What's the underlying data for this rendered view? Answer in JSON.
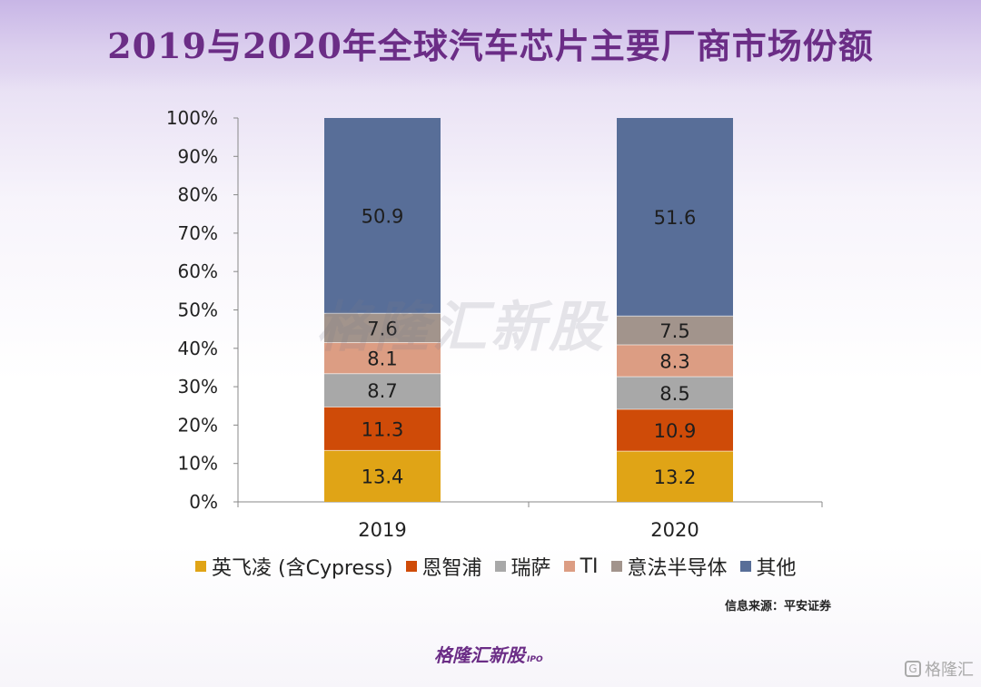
{
  "title": "2019与2020年全球汽车芯片主要厂商市场份额",
  "source": "信息来源：平安证券",
  "logo": {
    "text": "格隆汇新股",
    "sub": "IPO"
  },
  "watermark": "格隆汇新股",
  "corner_logo": {
    "icon": "G",
    "text": "格隆汇"
  },
  "colors": {
    "title": "#6b2d86",
    "infineon": "#e0a416",
    "nxp": "#cf4b08",
    "renesas": "#a8a8a8",
    "ti": "#dc9d83",
    "st": "#a2948c",
    "others": "#586e98"
  },
  "chart_data": {
    "type": "bar",
    "stacked": true,
    "categories": [
      "2019",
      "2020"
    ],
    "series": [
      {
        "name": "英飞凌 (含Cypress)",
        "values": [
          13.4,
          13.2
        ],
        "color": "#e0a416"
      },
      {
        "name": "恩智浦",
        "values": [
          11.3,
          10.9
        ],
        "color": "#cf4b08"
      },
      {
        "name": "瑞萨",
        "values": [
          8.7,
          8.5
        ],
        "color": "#a8a8a8"
      },
      {
        "name": "TI",
        "values": [
          8.1,
          8.3
        ],
        "color": "#dc9d83"
      },
      {
        "name": "意法半导体",
        "values": [
          7.6,
          7.5
        ],
        "color": "#a2948c"
      },
      {
        "name": "其他",
        "values": [
          50.9,
          51.6
        ],
        "color": "#586e98"
      }
    ],
    "ylim": [
      0,
      100
    ],
    "yticks": [
      "0%",
      "10%",
      "20%",
      "30%",
      "40%",
      "50%",
      "60%",
      "70%",
      "80%",
      "90%",
      "100%"
    ],
    "grid": false,
    "legend": "bottom"
  }
}
